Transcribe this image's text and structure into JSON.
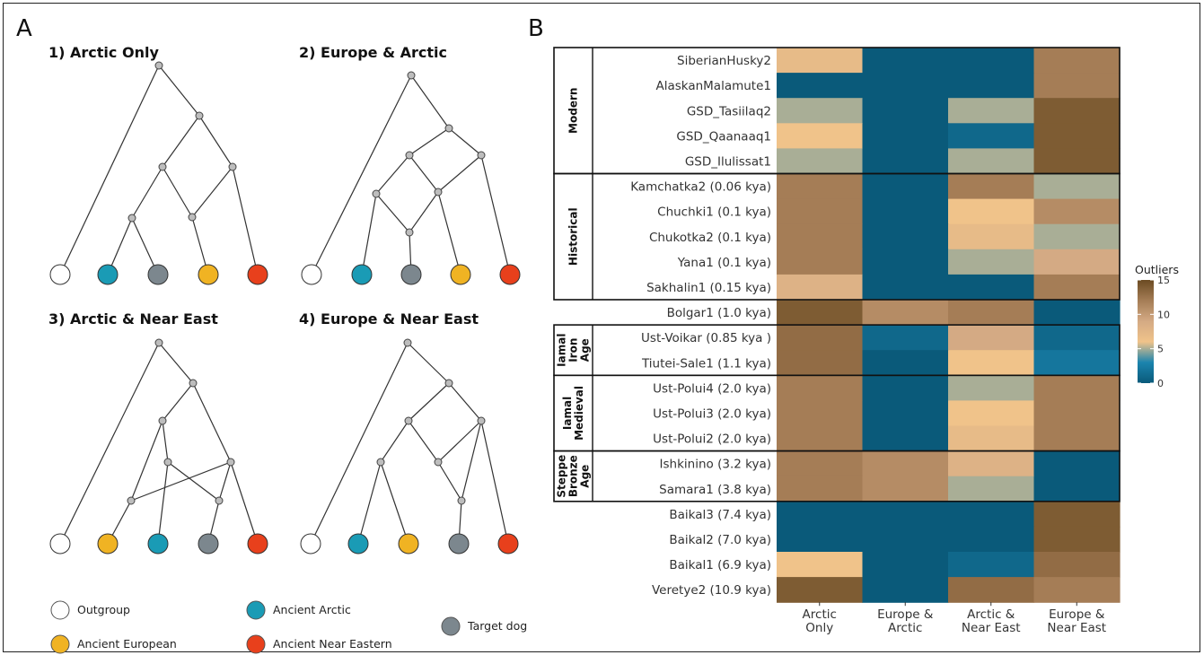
{
  "panel_a": {
    "letter": "A",
    "trees": [
      {
        "title": "1) Arctic Only",
        "tips": [
          "outgroup",
          "arctic",
          "target",
          "european",
          "neareast"
        ]
      },
      {
        "title": "2) Europe & Arctic",
        "tips": [
          "outgroup",
          "arctic",
          "target",
          "european",
          "neareast"
        ]
      },
      {
        "title": "3) Arctic & Near East",
        "tips": [
          "outgroup",
          "european",
          "arctic",
          "target",
          "neareast"
        ]
      },
      {
        "title": "4) Europe & Near East",
        "tips": [
          "outgroup",
          "arctic",
          "european",
          "target",
          "neareast"
        ]
      }
    ],
    "legend": [
      {
        "key": "outgroup",
        "label": "Outgroup",
        "color": "#ffffff"
      },
      {
        "key": "arctic",
        "label": "Ancient Arctic",
        "color": "#1a9bb5"
      },
      {
        "key": "target",
        "label": "Target dog",
        "color": "#7c878e"
      },
      {
        "key": "european",
        "label": "Ancient European",
        "color": "#f0b323"
      },
      {
        "key": "neareast",
        "label": "Ancient Near Eastern",
        "color": "#e8401c"
      }
    ]
  },
  "panel_b": {
    "letter": "B"
  },
  "chart_data": {
    "type": "heatmap",
    "columns": [
      "Arctic\nOnly",
      "Europe &\nArctic",
      "Arctic &\nNear East",
      "Europe &\nNear East"
    ],
    "rows": [
      "SiberianHusky2",
      "AlaskanMalamute1",
      "GSD_Tasiilaq2",
      "GSD_Qaanaaq1",
      "GSD_Ilulissat1",
      "Kamchatka2 (0.06 kya)",
      "Chuchki1 (0.1 kya)",
      "Chukotka2 (0.1 kya)",
      "Yana1 (0.1 kya)",
      "Sakhalin1 (0.15 kya)",
      "Bolgar1 (1.0 kya)",
      "Ust-Voikar (0.85 kya )",
      "Tiutei-Sale1 (1.1 kya)",
      "Ust-Polui4 (2.0 kya)",
      "Ust-Polui3 (2.0 kya)",
      "Ust-Polui2 (2.0 kya)",
      "Ishkinino (3.2 kya)",
      "Samara1 (3.8 kya)",
      "Baikal3 (7.4 kya)",
      "Baikal2 (7.0 kya)",
      "Baikal1 (6.9 kya)",
      "Veretye2 (10.9 kya)"
    ],
    "values": [
      [
        7,
        0,
        0,
        12
      ],
      [
        0,
        0,
        0,
        12
      ],
      [
        5,
        0,
        5,
        14
      ],
      [
        6,
        0,
        1,
        14
      ],
      [
        5,
        0,
        5,
        14
      ],
      [
        12,
        0,
        12,
        5
      ],
      [
        12,
        0,
        6,
        11
      ],
      [
        12,
        0,
        7,
        5
      ],
      [
        12,
        0,
        5,
        9
      ],
      [
        8,
        0,
        0,
        12
      ],
      [
        14,
        11,
        12,
        0
      ],
      [
        13,
        1,
        9,
        1
      ],
      [
        13,
        0,
        6,
        2
      ],
      [
        12,
        0,
        5,
        12
      ],
      [
        12,
        0,
        6,
        12
      ],
      [
        12,
        0,
        7,
        12
      ],
      [
        12,
        11,
        8,
        0
      ],
      [
        12,
        11,
        5,
        0
      ],
      [
        0,
        0,
        0,
        14
      ],
      [
        0,
        0,
        0,
        14
      ],
      [
        6,
        0,
        1,
        13
      ],
      [
        14,
        0,
        13,
        12
      ]
    ],
    "groups": [
      {
        "label": [
          "Modern"
        ],
        "start": 0,
        "end": 4
      },
      {
        "label": [
          "Historical"
        ],
        "start": 5,
        "end": 9
      },
      {
        "label": [
          "Iamal",
          "Iron",
          "Age"
        ],
        "start": 11,
        "end": 12
      },
      {
        "label": [
          "Iamal",
          "Medieval"
        ],
        "start": 13,
        "end": 15
      },
      {
        "label": [
          "Steppe",
          "Bronze",
          "Age"
        ],
        "start": 16,
        "end": 17
      }
    ],
    "colorbar": {
      "title": "Outliers",
      "range": [
        0,
        15
      ],
      "ticks": [
        0,
        5,
        10,
        15
      ]
    },
    "color_scale": [
      "#0a5a7a",
      "#1b84ae",
      "#f0c38a",
      "#d4aa84",
      "#a57d56",
      "#6b4b22"
    ]
  }
}
